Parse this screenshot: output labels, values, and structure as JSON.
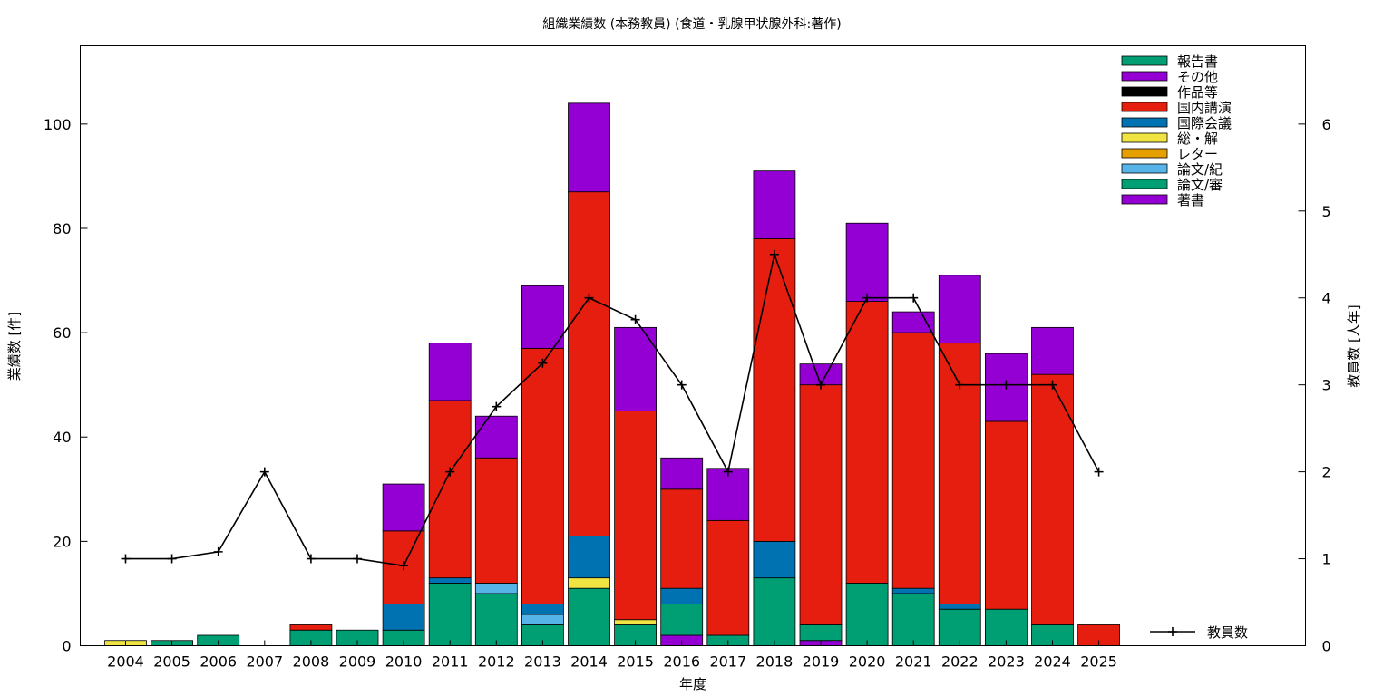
{
  "chart_data": {
    "type": "bar",
    "title": "組織業績数 (本務教員) (食道・乳腺甲状腺外科:著作)",
    "xlabel": "年度",
    "ylabel": "業績数 [件]",
    "y2label": "教員数 [人年]",
    "ylim": [
      0,
      115
    ],
    "y2lim": [
      0,
      6.9
    ],
    "yticks": [
      "0",
      "20",
      "40",
      "60",
      "80",
      "100"
    ],
    "y2ticks": [
      "0",
      "1",
      "2",
      "3",
      "4",
      "5",
      "6"
    ],
    "grid": false,
    "legend_position": "top-right",
    "categories": [
      "2004",
      "2005",
      "2006",
      "2007",
      "2008",
      "2009",
      "2010",
      "2011",
      "2012",
      "2013",
      "2014",
      "2015",
      "2016",
      "2017",
      "2018",
      "2019",
      "2020",
      "2021",
      "2022",
      "2023",
      "2024",
      "2025"
    ],
    "series": [
      {
        "name": "著書",
        "color": "#9400d3",
        "values": [
          0,
          0,
          0,
          0,
          0,
          0,
          0,
          0,
          0,
          0,
          0,
          0,
          2,
          0,
          0,
          1,
          0,
          0,
          0,
          0,
          0,
          0
        ]
      },
      {
        "name": "論文/審",
        "color": "#009e73",
        "values": [
          0,
          1,
          2,
          0,
          3,
          3,
          3,
          12,
          10,
          4,
          11,
          4,
          6,
          2,
          13,
          3,
          12,
          10,
          7,
          7,
          4,
          0
        ]
      },
      {
        "name": "論文/紀",
        "color": "#56b4e9",
        "values": [
          0,
          0,
          0,
          0,
          0,
          0,
          0,
          0,
          2,
          2,
          0,
          0,
          0,
          0,
          0,
          0,
          0,
          0,
          0,
          0,
          0,
          0
        ]
      },
      {
        "name": "レター",
        "color": "#e69f00",
        "values": [
          0,
          0,
          0,
          0,
          0,
          0,
          0,
          0,
          0,
          0,
          0,
          0,
          0,
          0,
          0,
          0,
          0,
          0,
          0,
          0,
          0,
          0
        ]
      },
      {
        "name": "総・解",
        "color": "#f0e442",
        "values": [
          1,
          0,
          0,
          0,
          0,
          0,
          0,
          0,
          0,
          0,
          2,
          1,
          0,
          0,
          0,
          0,
          0,
          0,
          0,
          0,
          0,
          0
        ]
      },
      {
        "name": "国際会議",
        "color": "#0072b2",
        "values": [
          0,
          0,
          0,
          0,
          0,
          0,
          5,
          1,
          0,
          2,
          8,
          0,
          3,
          0,
          7,
          0,
          0,
          1,
          1,
          0,
          0,
          0
        ]
      },
      {
        "name": "国内講演",
        "color": "#e51e10",
        "values": [
          0,
          0,
          0,
          0,
          1,
          0,
          14,
          34,
          24,
          49,
          66,
          40,
          19,
          22,
          58,
          46,
          54,
          49,
          50,
          36,
          48,
          4
        ]
      },
      {
        "name": "作品等",
        "color": "#000000",
        "values": [
          0,
          0,
          0,
          0,
          0,
          0,
          0,
          0,
          0,
          0,
          0,
          0,
          0,
          0,
          0,
          0,
          0,
          0,
          0,
          0,
          0,
          0
        ]
      },
      {
        "name": "その他",
        "color": "#9400d3",
        "values": [
          0,
          0,
          0,
          0,
          0,
          0,
          9,
          11,
          8,
          12,
          17,
          16,
          6,
          10,
          13,
          4,
          15,
          4,
          13,
          13,
          9,
          0
        ]
      },
      {
        "name": "報告書",
        "color": "#009e73",
        "values": [
          0,
          0,
          0,
          0,
          0,
          0,
          0,
          0,
          0,
          0,
          0,
          0,
          0,
          0,
          0,
          0,
          0,
          0,
          0,
          0,
          0,
          0
        ]
      }
    ],
    "line": {
      "name": "教員数",
      "color": "#000000",
      "values": [
        1,
        1,
        1.08,
        2,
        1,
        1,
        0.92,
        2,
        2.75,
        3.25,
        4,
        3.75,
        3,
        2,
        4.5,
        3,
        4,
        4,
        3,
        3,
        3,
        2
      ]
    }
  }
}
